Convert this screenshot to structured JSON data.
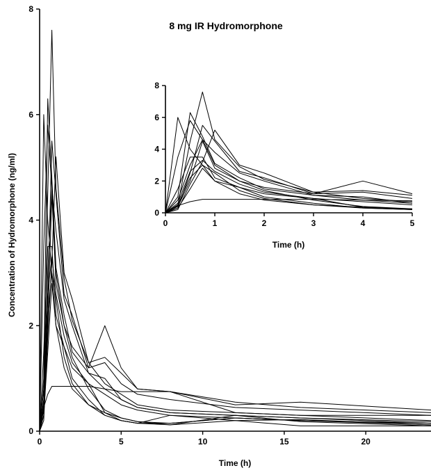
{
  "chart_data": [
    {
      "type": "line",
      "title": "8 mg IR Hydromorphone",
      "xlabel": "Time  (h)",
      "ylabel": "Concentration of Hydromorphone  (ng/ml)",
      "xlim": [
        0,
        24
      ],
      "ylim": [
        0,
        8
      ],
      "xticks": [
        0,
        5,
        10,
        15,
        20
      ],
      "yticks": [
        0,
        2,
        4,
        6,
        8
      ],
      "x": [
        0,
        0.25,
        0.5,
        0.75,
        1,
        1.5,
        2,
        3,
        4,
        5,
        6,
        8,
        12,
        16,
        24
      ],
      "series": [
        {
          "values": [
            0,
            6.0,
            4.0,
            3.0,
            2.0,
            1.6,
            1.2,
            0.9,
            0.7,
            0.5,
            0.4,
            0.3,
            0.25,
            0.2,
            0.12
          ]
        },
        {
          "values": [
            0,
            1.0,
            6.3,
            4.8,
            3.1,
            2.2,
            1.5,
            1.1,
            0.8,
            0.6,
            0.45,
            0.35,
            0.3,
            0.25,
            0.15
          ]
        },
        {
          "values": [
            0,
            0.5,
            4.5,
            7.6,
            4.6,
            2.9,
            2.1,
            1.3,
            0.9,
            0.7,
            0.5,
            0.4,
            0.35,
            0.3,
            0.2
          ]
        },
        {
          "values": [
            0,
            3.5,
            5.8,
            4.6,
            3.0,
            2.0,
            1.6,
            1.2,
            2.0,
            1.2,
            0.8,
            0.75,
            0.5,
            0.55,
            0.4
          ]
        },
        {
          "values": [
            0,
            0.3,
            2.5,
            5.5,
            4.5,
            2.6,
            2.2,
            1.2,
            1.3,
            0.9,
            0.7,
            0.6,
            0.45,
            0.4,
            0.3
          ]
        },
        {
          "values": [
            0,
            0.2,
            1.8,
            3.2,
            5.2,
            3.0,
            2.5,
            1.3,
            1.4,
            1.1,
            0.8,
            0.75,
            0.55,
            0.45,
            0.35
          ]
        },
        {
          "values": [
            0,
            0.8,
            3.0,
            4.6,
            3.8,
            2.5,
            2.0,
            1.1,
            1.0,
            0.6,
            0.45,
            0.35,
            0.3,
            0.25,
            0.18
          ]
        },
        {
          "values": [
            0,
            0.4,
            2.0,
            4.5,
            2.8,
            2.0,
            1.4,
            0.8,
            0.4,
            0.25,
            0.18,
            0.15,
            0.25,
            0.2,
            0.15
          ]
        },
        {
          "values": [
            0,
            1.5,
            3.5,
            3.5,
            2.2,
            1.6,
            1.0,
            0.6,
            0.3,
            0.2,
            0.15,
            0.15,
            0.25,
            0.2,
            0.15
          ]
        },
        {
          "values": [
            0,
            0.5,
            2.2,
            3.0,
            2.5,
            1.4,
            0.9,
            0.5,
            0.3,
            0.2,
            0.15,
            0.12,
            0.2,
            0.22,
            0.12
          ]
        },
        {
          "values": [
            0,
            0.3,
            1.5,
            2.8,
            2.0,
            1.2,
            0.8,
            0.5,
            0.35,
            0.25,
            0.18,
            0.12,
            0.3,
            0.18,
            0.1
          ]
        },
        {
          "values": [
            0,
            0.6,
            2.6,
            3.3,
            2.6,
            1.8,
            1.3,
            0.9,
            0.35,
            0.2,
            0.15,
            0.3,
            0.2,
            0.1,
            0.1
          ]
        },
        {
          "values": [
            0,
            0.45,
            0.7,
            0.85,
            0.85,
            0.85,
            0.85,
            0.85,
            0.8,
            0.75,
            0.75,
            0.75,
            0.35,
            0.3,
            0.3
          ]
        }
      ]
    },
    {
      "type": "line",
      "title": "",
      "xlabel": "Time  (h)",
      "ylabel": "",
      "xlim": [
        0,
        5
      ],
      "ylim": [
        0,
        8
      ],
      "xticks": [
        0,
        1,
        2,
        3,
        4,
        5
      ],
      "yticks": [
        0,
        2,
        4,
        6,
        8
      ],
      "x": [
        0,
        0.25,
        0.5,
        0.75,
        1,
        1.5,
        2,
        3,
        4,
        5
      ],
      "series": [
        {
          "values": [
            0,
            6.0,
            4.0,
            3.0,
            2.0,
            1.6,
            1.2,
            0.9,
            0.7,
            0.5
          ]
        },
        {
          "values": [
            0,
            1.0,
            6.3,
            4.8,
            3.1,
            2.2,
            1.5,
            1.1,
            0.8,
            0.6
          ]
        },
        {
          "values": [
            0,
            0.5,
            4.5,
            7.6,
            4.6,
            2.9,
            2.1,
            1.3,
            0.9,
            0.7
          ]
        },
        {
          "values": [
            0,
            3.5,
            5.8,
            4.6,
            3.0,
            2.0,
            1.6,
            1.2,
            2.0,
            1.2
          ]
        },
        {
          "values": [
            0,
            0.3,
            2.5,
            5.5,
            4.5,
            2.6,
            2.2,
            1.2,
            1.3,
            0.9
          ]
        },
        {
          "values": [
            0,
            0.2,
            1.8,
            3.2,
            5.2,
            3.0,
            2.5,
            1.3,
            1.4,
            1.1
          ]
        },
        {
          "values": [
            0,
            0.8,
            3.0,
            4.6,
            3.8,
            2.5,
            2.0,
            1.1,
            1.0,
            0.6
          ]
        },
        {
          "values": [
            0,
            0.4,
            2.0,
            4.5,
            2.8,
            2.0,
            1.4,
            0.8,
            0.4,
            0.25
          ]
        },
        {
          "values": [
            0,
            1.5,
            3.5,
            3.5,
            2.2,
            1.6,
            1.0,
            0.6,
            0.3,
            0.2
          ]
        },
        {
          "values": [
            0,
            0.5,
            2.2,
            3.0,
            2.5,
            1.4,
            0.9,
            0.5,
            0.3,
            0.2
          ]
        },
        {
          "values": [
            0,
            0.3,
            1.5,
            2.8,
            2.0,
            1.2,
            0.8,
            0.5,
            0.35,
            0.25
          ]
        },
        {
          "values": [
            0,
            0.6,
            2.6,
            3.3,
            2.6,
            1.8,
            1.3,
            0.9,
            0.35,
            0.2
          ]
        },
        {
          "values": [
            0,
            0.45,
            0.7,
            0.85,
            0.85,
            0.85,
            0.85,
            0.85,
            0.8,
            0.75
          ]
        }
      ]
    }
  ]
}
